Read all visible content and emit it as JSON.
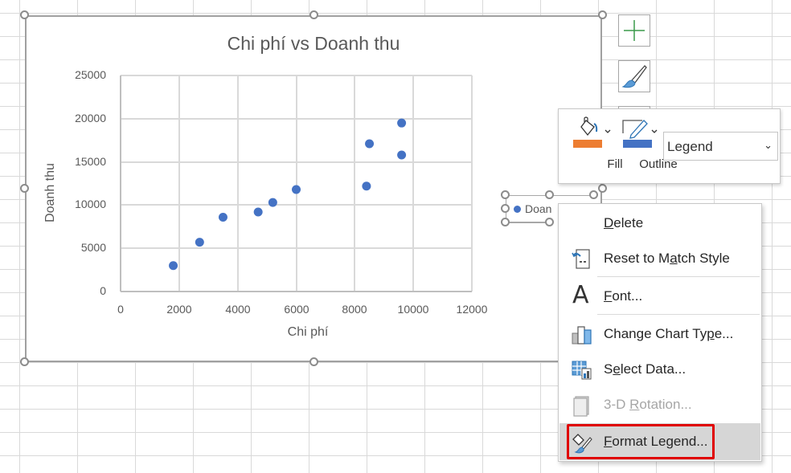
{
  "chart": {
    "title": "Chi phí vs Doanh thu",
    "x_axis_title": "Chi phí",
    "y_axis_title": "Doanh thu",
    "x_ticks": [
      "0",
      "2000",
      "4000",
      "6000",
      "8000",
      "10000",
      "12000"
    ],
    "y_ticks": [
      "25000",
      "20000",
      "15000",
      "10000",
      "5000",
      "0"
    ],
    "marker_color": "#4472c4",
    "legend_text": "Doan"
  },
  "chart_data": {
    "type": "scatter",
    "title": "Chi phí vs Doanh thu",
    "xlabel": "Chi phí",
    "ylabel": "Doanh thu",
    "xlim": [
      0,
      12000
    ],
    "ylim": [
      0,
      25000
    ],
    "x_ticks": [
      0,
      2000,
      4000,
      6000,
      8000,
      10000,
      12000
    ],
    "y_ticks": [
      0,
      5000,
      10000,
      15000,
      20000,
      25000
    ],
    "grid": true,
    "legend_position": "right",
    "series": [
      {
        "name": "Doanh thu",
        "color": "#4472c4",
        "x": [
          1800,
          2700,
          3500,
          4700,
          5200,
          6000,
          8400,
          8500,
          9600,
          9600
        ],
        "y": [
          3000,
          5700,
          8600,
          9200,
          10300,
          11800,
          12200,
          17100,
          15800,
          19500
        ]
      }
    ]
  },
  "side_buttons": [
    {
      "name": "chart-elements",
      "icon": "plus-icon"
    },
    {
      "name": "chart-styles",
      "icon": "paintbrush-icon"
    }
  ],
  "mini_toolbar": {
    "fill_label": "Fill",
    "fill_color": "#ed7d31",
    "outline_label": "Outline",
    "outline_color": "#4472c4",
    "element_select": "Legend"
  },
  "context_menu": {
    "items": [
      {
        "label": "Delete",
        "icon": "none",
        "enabled": true
      },
      {
        "label": "Reset to Match Style",
        "icon": "reset-style-icon",
        "enabled": true
      },
      {
        "label": "Font...",
        "icon": "font-icon",
        "enabled": true
      },
      {
        "label": "Change Chart Type...",
        "icon": "chart-type-icon",
        "enabled": true
      },
      {
        "label": "Select Data...",
        "icon": "select-data-icon",
        "enabled": true
      },
      {
        "label": "3-D Rotation...",
        "icon": "3d-rotation-icon",
        "enabled": false
      },
      {
        "label": "Format Legend...",
        "icon": "format-legend-icon",
        "enabled": true,
        "highlighted": true
      }
    ]
  },
  "highlight_color": "#e00000"
}
